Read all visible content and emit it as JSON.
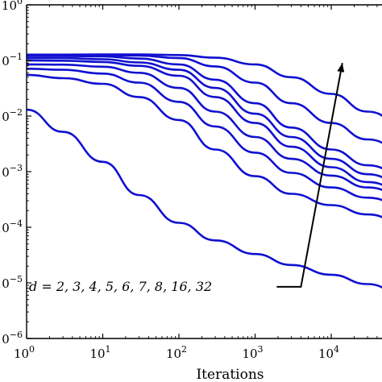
{
  "chart_data": {
    "type": "line",
    "xlabel": "Iterations",
    "ylabel": "",
    "x_scale": "log",
    "y_scale": "log",
    "xlim": [
      1,
      100000
    ],
    "ylim": [
      1e-06,
      1
    ],
    "x_ticks": [
      {
        "value": 1,
        "base": "10",
        "exp": "0"
      },
      {
        "value": 10,
        "base": "10",
        "exp": "1"
      },
      {
        "value": 100,
        "base": "10",
        "exp": "2"
      },
      {
        "value": 1000,
        "base": "10",
        "exp": "3"
      },
      {
        "value": 10000,
        "base": "10",
        "exp": "4"
      }
    ],
    "y_ticks": [
      {
        "value": 1,
        "base": "10",
        "exp": "0"
      },
      {
        "value": 0.1,
        "base": "10",
        "exp": "−1"
      },
      {
        "value": 0.01,
        "base": "10",
        "exp": "−2"
      },
      {
        "value": 0.001,
        "base": "10",
        "exp": "−3"
      },
      {
        "value": 0.0001,
        "base": "10",
        "exp": "−4"
      },
      {
        "value": 1e-05,
        "base": "10",
        "exp": "−5"
      },
      {
        "value": 1e-06,
        "base": "10",
        "exp": "−6"
      }
    ],
    "annotation": "d = 2, 3, 4, 5, 6, 7, 8, 16, 32",
    "line_color": "#1010d0",
    "x": [
      1,
      3,
      10,
      30,
      100,
      300,
      1000,
      3000,
      10000,
      30000,
      100000
    ],
    "series": [
      {
        "values": [
          0.013,
          0.0052,
          0.0015,
          0.00038,
          0.00012,
          5.8e-05,
          3.3e-05,
          2.1e-05,
          1.4e-05,
          9.5e-06,
          5.5e-06
        ]
      },
      {
        "values": [
          0.055,
          0.048,
          0.038,
          0.022,
          0.0085,
          0.0025,
          0.00083,
          0.0004,
          0.00025,
          0.00017,
          0.00011
        ]
      },
      {
        "values": [
          0.071,
          0.068,
          0.058,
          0.04,
          0.018,
          0.0065,
          0.0022,
          0.00095,
          0.00052,
          0.00034,
          0.00023
        ]
      },
      {
        "values": [
          0.085,
          0.084,
          0.077,
          0.06,
          0.032,
          0.012,
          0.0042,
          0.0017,
          0.00085,
          0.00052,
          0.00035
        ]
      },
      {
        "values": [
          0.1,
          0.099,
          0.094,
          0.08,
          0.053,
          0.022,
          0.0075,
          0.0028,
          0.0012,
          0.00065,
          0.00042
        ]
      },
      {
        "values": [
          0.11,
          0.11,
          0.105,
          0.092,
          0.068,
          0.032,
          0.011,
          0.0042,
          0.0017,
          0.0009,
          0.00055
        ]
      },
      {
        "values": [
          0.12,
          0.12,
          0.118,
          0.108,
          0.085,
          0.045,
          0.017,
          0.0062,
          0.0025,
          0.0013,
          0.0008
        ]
      },
      {
        "values": [
          0.125,
          0.125,
          0.125,
          0.122,
          0.11,
          0.078,
          0.04,
          0.017,
          0.0075,
          0.0038,
          0.0022
        ]
      },
      {
        "values": [
          0.127,
          0.127,
          0.128,
          0.128,
          0.125,
          0.112,
          0.085,
          0.05,
          0.025,
          0.012,
          0.0062
        ]
      }
    ],
    "arrow": {
      "from": [
        4000,
        8.5e-06
      ],
      "to": [
        14000,
        0.09
      ]
    },
    "grid": false,
    "legend": "none"
  }
}
